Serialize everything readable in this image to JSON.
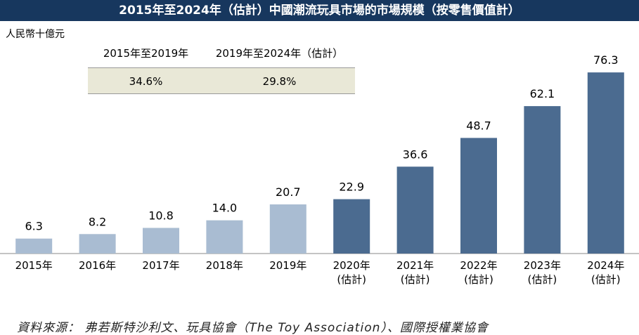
{
  "chart_data": {
    "type": "bar",
    "title": "2015年至2024年（估計）中國潮流玩具市場的市場規模（按零售價值計）",
    "y_label": "人民幣十億元",
    "categories": [
      "2015年",
      "2016年",
      "2017年",
      "2018年",
      "2019年",
      "2020年\n(估計)",
      "2021年\n(估計)",
      "2022年\n(估計)",
      "2023年\n(估計)",
      "2024年\n(估計)"
    ],
    "values": [
      6.3,
      8.2,
      10.8,
      14.0,
      20.7,
      22.9,
      36.6,
      48.7,
      62.1,
      76.3
    ],
    "value_labels": [
      "6.3",
      "8.2",
      "10.8",
      "14.0",
      "20.7",
      "22.9",
      "36.6",
      "48.7",
      "62.1",
      "76.3"
    ],
    "colors": [
      "#a9bcd2",
      "#a9bcd2",
      "#a9bcd2",
      "#a9bcd2",
      "#a9bcd2",
      "#4b6b90",
      "#4b6b90",
      "#4b6b90",
      "#4b6b90",
      "#4b6b90"
    ],
    "cagr_table": {
      "headers": [
        "2015年至2019年",
        "2019年至2024年（估計）"
      ],
      "values": [
        "34.6%",
        "29.8%"
      ]
    },
    "source": "資料來源： 弗若斯特沙利文、玩具協會（The Toy Association）、國際授權業協會"
  }
}
